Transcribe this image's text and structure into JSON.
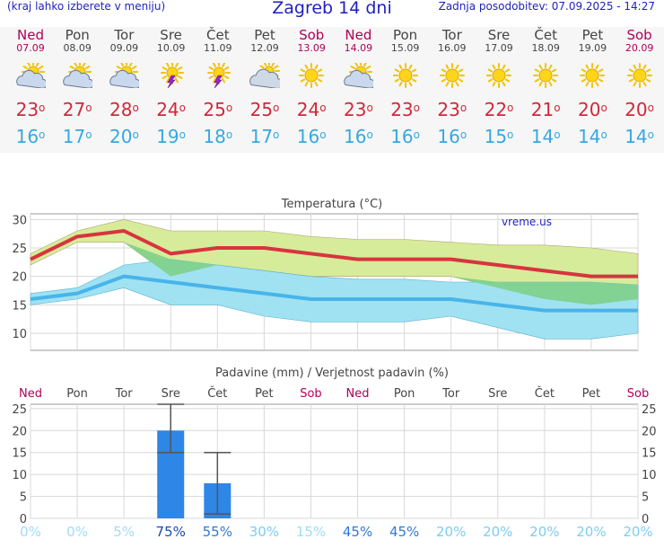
{
  "header": {
    "left_note": "(kraj lahko izberete v meniju)",
    "title": "Zagreb 14 dni",
    "updated": "Zadnja posodobitev: 07.09.2025 - 14:27"
  },
  "days": [
    {
      "name": "Ned",
      "date": "07.09",
      "weekend": true,
      "icon": "sun-cloud-icon",
      "tmax": "23",
      "tmin": "16"
    },
    {
      "name": "Pon",
      "date": "08.09",
      "weekend": false,
      "icon": "sun-cloud-icon",
      "tmax": "27",
      "tmin": "17"
    },
    {
      "name": "Tor",
      "date": "09.09",
      "weekend": false,
      "icon": "sun-cloud-icon",
      "tmax": "28",
      "tmin": "20"
    },
    {
      "name": "Sre",
      "date": "10.09",
      "weekend": false,
      "icon": "thunderstorm-icon",
      "tmax": "24",
      "tmin": "19"
    },
    {
      "name": "Čet",
      "date": "11.09",
      "weekend": false,
      "icon": "thunderstorm-icon",
      "tmax": "25",
      "tmin": "18"
    },
    {
      "name": "Pet",
      "date": "12.09",
      "weekend": false,
      "icon": "cloud-sun-icon",
      "tmax": "25",
      "tmin": "17"
    },
    {
      "name": "Sob",
      "date": "13.09",
      "weekend": true,
      "icon": "sunny-icon",
      "tmax": "24",
      "tmin": "16"
    },
    {
      "name": "Ned",
      "date": "14.09",
      "weekend": true,
      "icon": "sun-cloud-icon",
      "tmax": "23",
      "tmin": "16"
    },
    {
      "name": "Pon",
      "date": "15.09",
      "weekend": false,
      "icon": "sunny-icon",
      "tmax": "23",
      "tmin": "16"
    },
    {
      "name": "Tor",
      "date": "16.09",
      "weekend": false,
      "icon": "sunny-icon",
      "tmax": "23",
      "tmin": "16"
    },
    {
      "name": "Sre",
      "date": "17.09",
      "weekend": false,
      "icon": "sunny-icon",
      "tmax": "22",
      "tmin": "15"
    },
    {
      "name": "Čet",
      "date": "18.09",
      "weekend": false,
      "icon": "sunny-icon",
      "tmax": "21",
      "tmin": "14"
    },
    {
      "name": "Pet",
      "date": "19.09",
      "weekend": false,
      "icon": "sunny-icon",
      "tmax": "20",
      "tmin": "14"
    },
    {
      "name": "Sob",
      "date": "20.09",
      "weekend": true,
      "icon": "sunny-icon",
      "tmax": "20",
      "tmin": "14"
    }
  ],
  "chart_data": [
    {
      "type": "line",
      "title": "Temperatura (°C)",
      "watermark": "vreme.us",
      "ylim": [
        7,
        31
      ],
      "yticks": [
        10,
        15,
        20,
        25,
        30
      ],
      "grid": true,
      "colors": {
        "max_line": "#d8343f",
        "max_band": "#d6ec9a",
        "min_line": "#48b4ea",
        "min_band": "#a0e2f2",
        "overlap_band": "#7ed08a"
      },
      "x": [
        "07.09",
        "08.09",
        "09.09",
        "10.09",
        "11.09",
        "12.09",
        "13.09",
        "14.09",
        "15.09",
        "16.09",
        "17.09",
        "18.09",
        "19.09",
        "20.09"
      ],
      "series": [
        {
          "values": [
            23,
            27,
            28,
            24,
            25,
            25,
            24,
            23,
            23,
            23,
            22,
            21,
            20,
            20
          ]
        },
        {
          "values": [
            22,
            26,
            26,
            20,
            22,
            21,
            20,
            20,
            20,
            20,
            18,
            16,
            15,
            16
          ]
        },
        {
          "values": [
            24,
            28,
            30,
            28,
            28,
            28,
            27,
            26.5,
            26.5,
            26,
            25.5,
            25.5,
            25,
            24
          ]
        },
        {
          "values": [
            16,
            17,
            20,
            19,
            18,
            17,
            16,
            16,
            16,
            16,
            15,
            14,
            14,
            14
          ]
        },
        {
          "values": [
            15,
            16,
            18,
            15,
            15,
            13,
            12,
            12,
            12,
            13,
            11,
            9,
            9,
            10
          ]
        },
        {
          "values": [
            17,
            18,
            22,
            23,
            22,
            21,
            20,
            19.5,
            19.5,
            19,
            19,
            19,
            19,
            18.5
          ]
        }
      ]
    },
    {
      "type": "bar",
      "title": "Padavine (mm) / Verjetnost padavin (%)",
      "ylim": [
        0,
        26
      ],
      "yticks": [
        0,
        5,
        10,
        15,
        20,
        25
      ],
      "grid": true,
      "colors": {
        "bar": "#2e86e6",
        "whisker": "#555555"
      },
      "categories": [
        "Ned",
        "Pon",
        "Tor",
        "Sre",
        "Čet",
        "Pet",
        "Sob",
        "Ned",
        "Pon",
        "Tor",
        "Sre",
        "Čet",
        "Pet",
        "Sob"
      ],
      "weekend": [
        true,
        false,
        false,
        false,
        false,
        false,
        true,
        true,
        false,
        false,
        false,
        false,
        false,
        true
      ],
      "values": [
        0,
        0,
        0,
        20,
        8,
        0,
        0,
        0,
        0,
        0,
        0,
        0,
        0,
        0
      ],
      "range_low": [
        null,
        null,
        null,
        15,
        1,
        null,
        null,
        null,
        null,
        null,
        null,
        null,
        null,
        null
      ],
      "range_high": [
        null,
        null,
        null,
        26,
        15,
        null,
        null,
        null,
        null,
        null,
        null,
        null,
        null,
        null
      ],
      "probability": [
        "0%",
        "0%",
        "5%",
        "75%",
        "55%",
        "30%",
        "15%",
        "45%",
        "45%",
        "20%",
        "20%",
        "20%",
        "20%",
        "20%"
      ]
    }
  ]
}
